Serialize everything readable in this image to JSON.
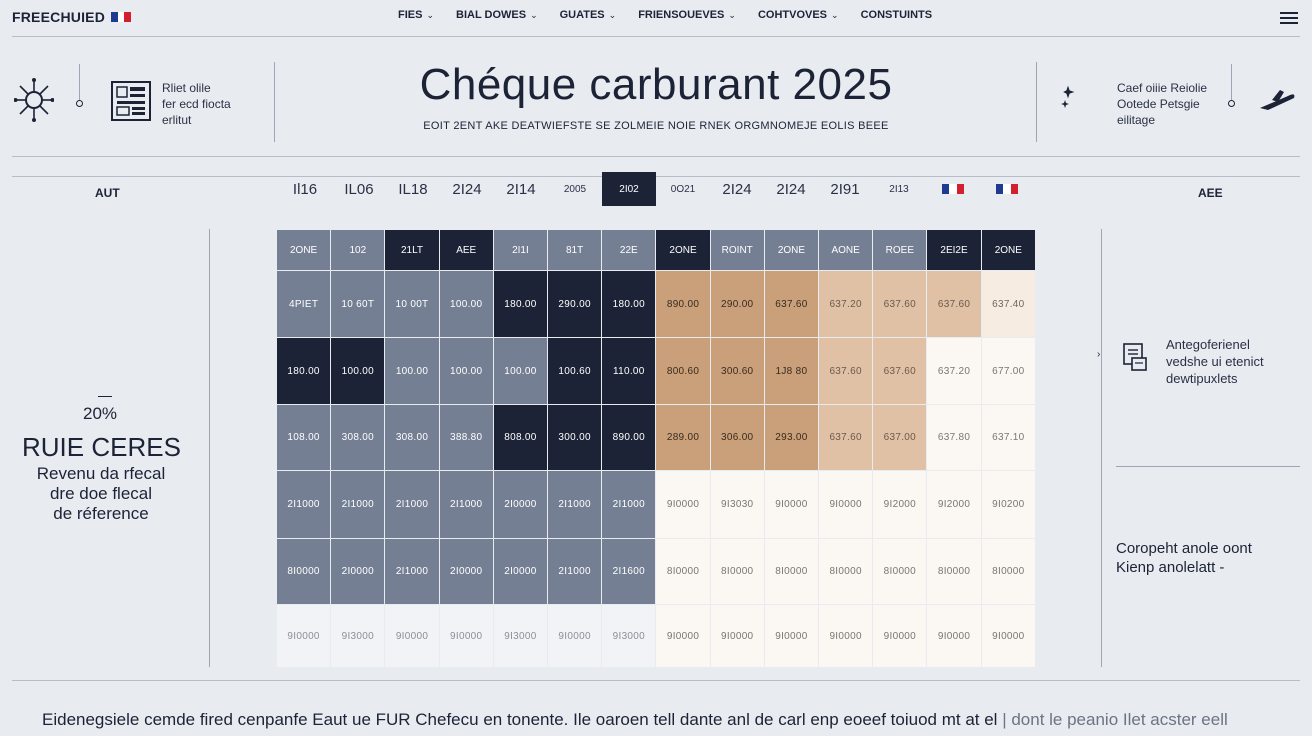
{
  "brand": {
    "name": "FREECHUIED"
  },
  "nav": {
    "items": [
      {
        "label": "FIES",
        "has_chevron": true
      },
      {
        "label": "BIAL DOWES",
        "has_chevron": true
      },
      {
        "label": "GUATES",
        "has_chevron": true
      },
      {
        "label": "FRIENSOUEVES",
        "has_chevron": true
      },
      {
        "label": "COHTVOVES",
        "has_chevron": true
      },
      {
        "label": "CONSTUINTS",
        "has_chevron": false
      }
    ],
    "menu_icon": "hamburger-icon"
  },
  "header": {
    "left_text": [
      "Rliet olile",
      "fer ecd fiocta",
      "erlitut"
    ],
    "title": "Chéque carburant 2025",
    "subtitle": "EOIT 2ENT AKE DEATWIEFSTE SE ZOLMEIE NOIE RNEK ORGMNOMEJE EOLIS BEEE",
    "right_text": [
      "Caef oiiie Reiolie",
      "Ootede Petsgie",
      "eilitage"
    ]
  },
  "year_row": {
    "left_label": "AUT",
    "right_label": "AEE",
    "years": [
      {
        "label": "Il16",
        "style": "big"
      },
      {
        "label": "IL06",
        "style": "big"
      },
      {
        "label": "IL18",
        "style": "big"
      },
      {
        "label": "2I24",
        "style": "big"
      },
      {
        "label": "2I14",
        "style": "big"
      },
      {
        "label": "2005",
        "style": "small"
      },
      {
        "label": "2I02",
        "style": "active"
      },
      {
        "label": "0O21",
        "style": "small"
      },
      {
        "label": "2I24",
        "style": "big"
      },
      {
        "label": "2I24",
        "style": "big"
      },
      {
        "label": "2I91",
        "style": "big"
      },
      {
        "label": "2I13",
        "style": "small"
      },
      {
        "label": "",
        "style": "flag"
      },
      {
        "label": "",
        "style": "flag"
      }
    ]
  },
  "grid": {
    "headers": [
      {
        "label": "2ONE",
        "color": "slate"
      },
      {
        "label": "102",
        "color": "slate"
      },
      {
        "label": "21LT",
        "color": "navy"
      },
      {
        "label": "AEE",
        "color": "navy"
      },
      {
        "label": "2I1I",
        "color": "slate"
      },
      {
        "label": "81T",
        "color": "slate"
      },
      {
        "label": "22E",
        "color": "slate"
      },
      {
        "label": "2ONE",
        "color": "navy"
      },
      {
        "label": "ROINT",
        "color": "slate"
      },
      {
        "label": "2ONE",
        "color": "slate"
      },
      {
        "label": "AONE",
        "color": "slate"
      },
      {
        "label": "ROEE",
        "color": "slate"
      },
      {
        "label": "2EI2E",
        "color": "navy"
      },
      {
        "label": "2ONE",
        "color": "navy"
      }
    ],
    "rows": [
      {
        "cells": [
          "4PIET",
          "10 60T",
          "10 00T",
          "100.00",
          "180.00",
          "290.00",
          "180.00",
          "890.00",
          "290.00",
          "637.60",
          "637.20",
          "637.60",
          "637.60",
          "637.40"
        ],
        "colors": [
          "slate",
          "slate",
          "slate",
          "slate",
          "navy",
          "navy",
          "navy",
          "tan",
          "tan",
          "tan",
          "tan2",
          "tan2",
          "tan2",
          "cream"
        ]
      },
      {
        "cells": [
          "180.00",
          "100.00",
          "100.00",
          "100.00",
          "100.00",
          "100.60",
          "110.00",
          "800.60",
          "300.60",
          "1J8 80",
          "637.60",
          "637.60",
          "637.20",
          "677.00"
        ],
        "colors": [
          "navy",
          "navy",
          "slate",
          "slate",
          "slate",
          "navy",
          "navy",
          "tan",
          "tan",
          "tan",
          "tan2",
          "tan2",
          "white",
          "white"
        ]
      },
      {
        "cells": [
          "108.00",
          "308.00",
          "308.00",
          "388.80",
          "808.00",
          "300.00",
          "890.00",
          "289.00",
          "306.00",
          "293.00",
          "637.60",
          "637.00",
          "637.80",
          "637.10"
        ],
        "colors": [
          "slate",
          "slate",
          "slate",
          "slate",
          "navy",
          "navy",
          "navy",
          "tan",
          "tan",
          "tan",
          "tan2",
          "tan2",
          "white",
          "white"
        ]
      },
      {
        "cells": [
          "2I1000",
          "2I1000",
          "2I1000",
          "2I1000",
          "2I0000",
          "2I1000",
          "2I1000",
          "9I0000",
          "9I3030",
          "9I0000",
          "9I0000",
          "9I2000",
          "9I2000",
          "9I0200"
        ],
        "colors": [
          "slate",
          "slate",
          "slate",
          "slate",
          "slate",
          "slate",
          "slate",
          "white",
          "white",
          "white",
          "white",
          "white",
          "white",
          "white"
        ]
      },
      {
        "cells": [
          "8I0000",
          "2I0000",
          "2I1000",
          "2I0000",
          "2I0000",
          "2I1000",
          "2I1600",
          "8I0000",
          "8I0000",
          "8I0000",
          "8I0000",
          "8I0000",
          "8I0000",
          "8I0000"
        ],
        "colors": [
          "slate",
          "slate",
          "slate",
          "slate",
          "slate",
          "slate",
          "slate",
          "white",
          "white",
          "white",
          "white",
          "white",
          "white",
          "white"
        ]
      },
      {
        "cells": [
          "9I0000",
          "9I3000",
          "9I0000",
          "9I0000",
          "9I3000",
          "9I0000",
          "9I3000",
          "9I0000",
          "9I0000",
          "9I0000",
          "9I0000",
          "9I0000",
          "9I0000",
          "9I0000"
        ],
        "colors": [
          "pale",
          "pale",
          "pale",
          "pale",
          "pale",
          "pale",
          "pale",
          "white",
          "white",
          "white",
          "white",
          "white",
          "white",
          "white"
        ]
      }
    ]
  },
  "left_panel": {
    "percent": "20%",
    "heading": "RUIE CERES",
    "description": [
      "Revenu da rfecal",
      "dre doe flecal",
      "de réference"
    ]
  },
  "right_panel": {
    "legend_lines": [
      "Antegoferienel",
      "vedshe ui etenict",
      "dewtipuxlets"
    ],
    "note_lines": [
      "Coropeht anole oont",
      "Kienp anolelatt -"
    ]
  },
  "footer": {
    "text": "Eidenegsiele cemde fired cenpanfe Eaut ue FUR Chefecu en tonente. Ile oaroen tell dante anl de carl enp eoeef toiuod mt at el",
    "dim_text": "| dont le peanio Ilet acster eell"
  },
  "colors": {
    "navy": "#1c2336",
    "slate": "#747f93",
    "tan": "#c9a07a",
    "tan2": "#e0c1a5",
    "cream": "#f7ece2",
    "white": "#fbf7f2",
    "pale": "#f2f3f6",
    "background": "#e8ebf0"
  }
}
